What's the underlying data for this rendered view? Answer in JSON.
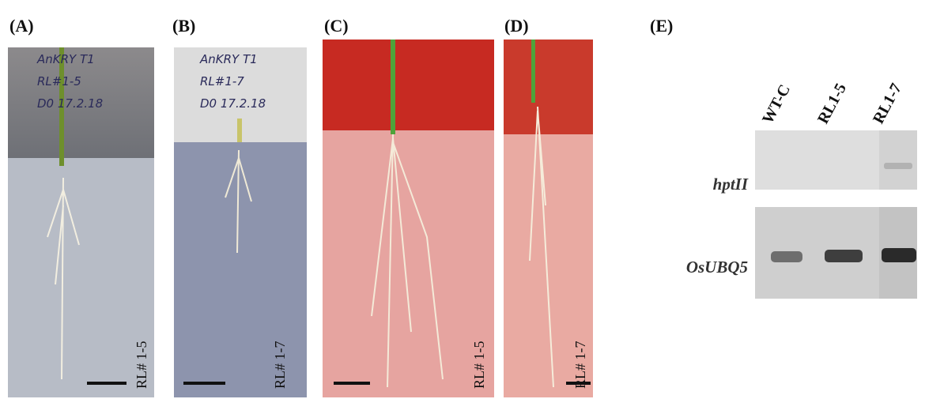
{
  "panels": [
    {
      "label": "(A)",
      "line": "RL# 1-5",
      "note": [
        "AnKRY T1",
        "RL#1-5",
        "D0 17.2.18"
      ]
    },
    {
      "label": "(B)",
      "line": "RL# 1-7",
      "note": [
        "AnKRY T1",
        "RL#1-7",
        "D0 17.2.18"
      ]
    },
    {
      "label": "(C)",
      "line": "RL# 1-5"
    },
    {
      "label": "(D)",
      "line": "RL# 1-7"
    }
  ],
  "gel": {
    "label": "(E)",
    "lanes": [
      "WT-C",
      "RL1-5",
      "RL1-7"
    ],
    "genes": [
      "hptII",
      "OsUBQ5"
    ]
  }
}
